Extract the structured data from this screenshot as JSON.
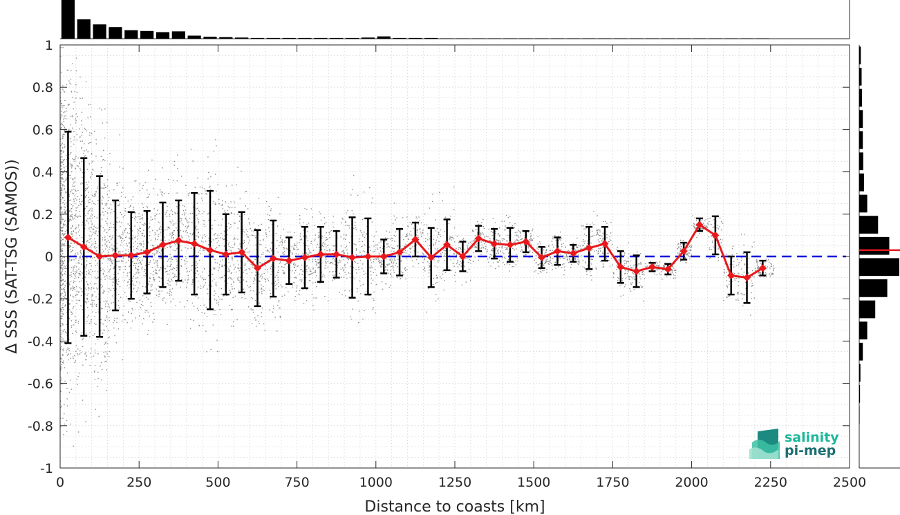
{
  "chart_data": {
    "type": "scatter",
    "xlabel": "Distance to coasts [km]",
    "ylabel": "Δ SSS (SAT-TSG (SAMOS))",
    "xlim": [
      0,
      2500
    ],
    "ylim": [
      -1,
      1
    ],
    "xticks": [
      "0",
      "250",
      "500",
      "750",
      "1000",
      "1250",
      "1500",
      "1750",
      "2000",
      "2250",
      "2500"
    ],
    "yticks": [
      "-1",
      "-0.8",
      "-0.6",
      "-0.4",
      "-0.2",
      "0",
      "0.2",
      "0.4",
      "0.6",
      "0.8",
      "1"
    ],
    "grid": true,
    "reference_line": {
      "y": 0,
      "color": "#0000dd",
      "style": "dashed"
    },
    "series": [
      {
        "type": "line-errorbar",
        "color": "#e8191c",
        "x": [
          25,
          75,
          125,
          175,
          225,
          275,
          325,
          375,
          425,
          475,
          525,
          575,
          625,
          675,
          725,
          775,
          825,
          875,
          925,
          975,
          1025,
          1075,
          1125,
          1175,
          1225,
          1275,
          1325,
          1375,
          1425,
          1475,
          1525,
          1575,
          1625,
          1675,
          1725,
          1775,
          1825,
          1875,
          1925,
          1975,
          2025,
          2075,
          2125,
          2175,
          2225
        ],
        "y": [
          0.09,
          0.045,
          0.0,
          0.005,
          0.005,
          0.02,
          0.055,
          0.075,
          0.06,
          0.03,
          0.01,
          0.02,
          -0.055,
          -0.01,
          -0.02,
          -0.005,
          0.01,
          0.01,
          -0.005,
          0.0,
          0.0,
          0.02,
          0.08,
          -0.005,
          0.055,
          0.0,
          0.085,
          0.06,
          0.055,
          0.07,
          -0.005,
          0.025,
          0.015,
          0.04,
          0.06,
          -0.05,
          -0.07,
          -0.05,
          -0.06,
          0.025,
          0.15,
          0.1,
          -0.09,
          -0.1,
          -0.055
        ],
        "err": [
          0.5,
          0.42,
          0.38,
          0.26,
          0.205,
          0.195,
          0.2,
          0.19,
          0.24,
          0.28,
          0.19,
          0.19,
          0.18,
          0.18,
          0.11,
          0.145,
          0.13,
          0.11,
          0.19,
          0.18,
          0.08,
          0.11,
          0.08,
          0.14,
          0.12,
          0.07,
          0.06,
          0.07,
          0.08,
          0.05,
          0.05,
          0.065,
          0.04,
          0.1,
          0.08,
          0.075,
          0.075,
          0.02,
          0.025,
          0.04,
          0.03,
          0.09,
          0.09,
          0.12,
          0.035
        ]
      }
    ],
    "scatter_color": "#8c8c8c",
    "top_histogram": {
      "color": "#000000",
      "x": [
        25,
        75,
        125,
        175,
        225,
        275,
        325,
        375,
        425,
        475,
        525,
        575,
        625,
        675,
        725,
        775,
        825,
        875,
        925,
        975,
        1025,
        1075,
        1125,
        1175,
        1225,
        1275,
        1325,
        1375,
        1425,
        1475,
        1525,
        1575,
        1625,
        1675,
        1725,
        1775,
        1825,
        1875,
        1925,
        1975,
        2025,
        2075,
        2125,
        2175,
        2225
      ],
      "counts": [
        1.0,
        0.5,
        0.37,
        0.3,
        0.22,
        0.2,
        0.17,
        0.19,
        0.08,
        0.05,
        0.04,
        0.03,
        0.02,
        0.02,
        0.02,
        0.02,
        0.02,
        0.02,
        0.02,
        0.03,
        0.06,
        0.02,
        0.02,
        0.02,
        0.01,
        0.01,
        0.01,
        0.01,
        0.01,
        0.01,
        0.01,
        0.01,
        0.01,
        0.01,
        0.01,
        0.01,
        0.01,
        0.01,
        0.01,
        0.01,
        0.01,
        0.01,
        0.01,
        0.01,
        0.01
      ]
    },
    "right_histogram": {
      "color": "#000000",
      "median_line_color": "#e8191c",
      "median_y": 0.03,
      "y": [
        0.95,
        0.85,
        0.75,
        0.65,
        0.55,
        0.45,
        0.35,
        0.25,
        0.15,
        0.05,
        -0.05,
        -0.15,
        -0.25,
        -0.35,
        -0.45,
        -0.55,
        -0.65,
        -0.75
      ],
      "counts": [
        0.04,
        0.06,
        0.07,
        0.09,
        0.09,
        0.1,
        0.12,
        0.2,
        0.47,
        0.75,
        1.0,
        0.7,
        0.4,
        0.2,
        0.09,
        0.03,
        0.02,
        0.01
      ]
    },
    "logo": {
      "line1": "salinity",
      "line2": "pi-mep"
    }
  }
}
